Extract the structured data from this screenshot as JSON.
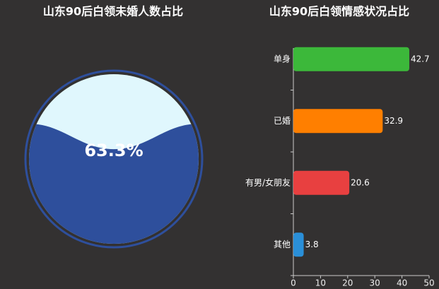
{
  "chart_data": [
    {
      "type": "liquidfill",
      "title": "山东90后白领未婚人数占比",
      "values": [
        63.3
      ],
      "value_labels": [
        "63.3%"
      ],
      "ylim": [
        0,
        100
      ],
      "color": "#2e4f9c",
      "background_color": "#e0f7fd",
      "border_color": "#2e4f9c"
    },
    {
      "type": "hbar",
      "title": "山东90后白领情感状况占比",
      "categories": [
        "单身",
        "已婚",
        "有男/女朋友",
        "其他"
      ],
      "values": [
        42.7,
        32.9,
        20.6,
        3.8
      ],
      "colors": [
        "#3cb83a",
        "#ff7f00",
        "#e84040",
        "#2a8fd8"
      ],
      "xlim": [
        0,
        50
      ],
      "xticks": [
        0,
        10,
        20,
        30,
        40,
        50
      ]
    }
  ]
}
